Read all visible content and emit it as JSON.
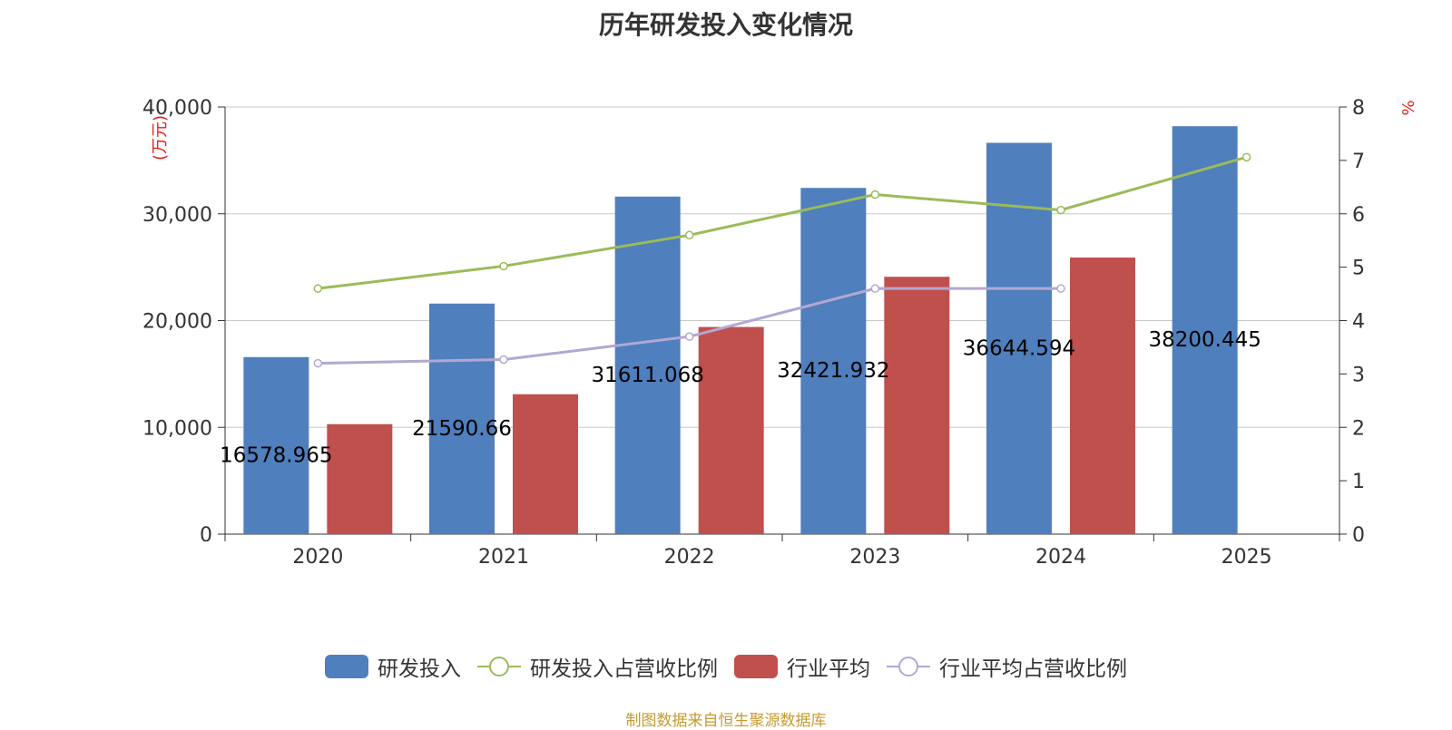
{
  "chart_data": {
    "type": "bar",
    "title": "历年研发投入变化情况",
    "categories": [
      "2020",
      "2021",
      "2022",
      "2023",
      "2024",
      "2025"
    ],
    "left_axis": {
      "unit": "万元",
      "ylim": [
        0,
        40000
      ],
      "ticks": [
        "0",
        "10,000",
        "20,000",
        "30,000",
        "40,000"
      ]
    },
    "right_axis": {
      "unit": "%",
      "ylim": [
        0,
        8
      ],
      "ticks": [
        "0",
        "1",
        "2",
        "3",
        "4",
        "5",
        "6",
        "7",
        "8"
      ]
    },
    "series": [
      {
        "name": "研发投入",
        "kind": "bar",
        "axis": "left",
        "color": "#4f7fbd",
        "values": [
          16578.965,
          21590.66,
          31611.068,
          32421.932,
          36644.594,
          38200.445
        ],
        "labels": [
          "16578.965",
          "21590.66",
          "31611.068",
          "32421.932",
          "36644.594",
          "38200.445"
        ]
      },
      {
        "name": "研发投入占营收比例",
        "kind": "line",
        "axis": "right",
        "color": "#9bbb59",
        "values": [
          4.6,
          5.02,
          5.6,
          6.36,
          6.07,
          7.06
        ]
      },
      {
        "name": "行业平均",
        "kind": "bar",
        "axis": "left",
        "color": "#c0504d",
        "values": [
          10300,
          13100,
          19400,
          24100,
          25900,
          null
        ]
      },
      {
        "name": "行业平均占营收比例",
        "kind": "line",
        "axis": "right",
        "color": "#b3a7d2",
        "values": [
          3.2,
          3.27,
          3.7,
          4.6,
          4.6,
          null
        ]
      }
    ],
    "grid": true,
    "legend_position": "bottom"
  },
  "source_note": "制图数据来自恒生聚源数据库"
}
